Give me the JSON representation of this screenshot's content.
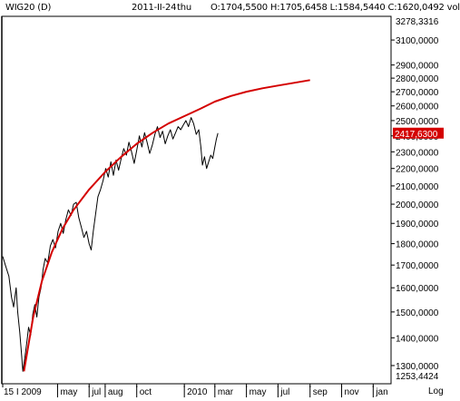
{
  "header": {
    "symbol": "WIG20 (D)",
    "date": "2011-II-24",
    "weekday": "thu",
    "ohlc": "O:1704,5500 H:1705,6458 L:1584,5440 C:1620,0492 vol"
  },
  "log_label": "Log",
  "chart_data": {
    "type": "line",
    "y_scale": "log",
    "ylim": [
      1253.4424,
      3278.3316
    ],
    "y_max_label": "3278,3316",
    "y_min_label": "1253,4424",
    "y_ticks": [
      {
        "value": 1300,
        "label": "1300,0000"
      },
      {
        "value": 1400,
        "label": "1400,0000"
      },
      {
        "value": 1500,
        "label": "1500,0000"
      },
      {
        "value": 1600,
        "label": "1600,0000"
      },
      {
        "value": 1700,
        "label": "1700,0000"
      },
      {
        "value": 1800,
        "label": "1800,0000"
      },
      {
        "value": 1900,
        "label": "1900,0000"
      },
      {
        "value": 2000,
        "label": "2000,0000"
      },
      {
        "value": 2100,
        "label": "2100,0000"
      },
      {
        "value": 2200,
        "label": "2200,0000"
      },
      {
        "value": 2300,
        "label": "2300,0000"
      },
      {
        "value": 2400,
        "label": "2400,0000"
      },
      {
        "value": 2500,
        "label": "2500,0000"
      },
      {
        "value": 2600,
        "label": "2600,0000"
      },
      {
        "value": 2700,
        "label": "2700,0000"
      },
      {
        "value": 2800,
        "label": "2800,0000"
      },
      {
        "value": 2900,
        "label": "2900,0000"
      },
      {
        "value": 3100,
        "label": "3100,0000"
      }
    ],
    "x_range": [
      "2009-01-15",
      "2011-02-01"
    ],
    "x_ticks": [
      {
        "date": "2009-01-15",
        "label": "15 I 2009"
      },
      {
        "date": "2009-05-01",
        "label": "may"
      },
      {
        "date": "2009-07-01",
        "label": "jul"
      },
      {
        "date": "2009-08-01",
        "label": "aug"
      },
      {
        "date": "2009-10-01",
        "label": "oct"
      },
      {
        "date": "2010-01-01",
        "label": "2010"
      },
      {
        "date": "2010-03-01",
        "label": "mar"
      },
      {
        "date": "2010-05-01",
        "label": "may"
      },
      {
        "date": "2010-07-01",
        "label": "jul"
      },
      {
        "date": "2010-09-01",
        "label": "sep"
      },
      {
        "date": "2010-11-01",
        "label": "nov"
      },
      {
        "date": "2011-01-01",
        "label": "jan"
      }
    ],
    "current_value": 2417.63,
    "current_label": "2417,6300",
    "series": [
      {
        "color": "#000000",
        "values": [
          {
            "x": "2009-01-15",
            "y": 1740
          },
          {
            "x": "2009-01-20",
            "y": 1700
          },
          {
            "x": "2009-01-27",
            "y": 1650
          },
          {
            "x": "2009-02-01",
            "y": 1560
          },
          {
            "x": "2009-02-05",
            "y": 1520
          },
          {
            "x": "2009-02-10",
            "y": 1600
          },
          {
            "x": "2009-02-13",
            "y": 1500
          },
          {
            "x": "2009-02-17",
            "y": 1420
          },
          {
            "x": "2009-02-20",
            "y": 1350
          },
          {
            "x": "2009-02-23",
            "y": 1280
          },
          {
            "x": "2009-02-27",
            "y": 1330
          },
          {
            "x": "2009-03-03",
            "y": 1390
          },
          {
            "x": "2009-03-06",
            "y": 1440
          },
          {
            "x": "2009-03-10",
            "y": 1410
          },
          {
            "x": "2009-03-14",
            "y": 1490
          },
          {
            "x": "2009-03-18",
            "y": 1530
          },
          {
            "x": "2009-03-22",
            "y": 1480
          },
          {
            "x": "2009-03-26",
            "y": 1560
          },
          {
            "x": "2009-03-30",
            "y": 1600
          },
          {
            "x": "2009-04-03",
            "y": 1680
          },
          {
            "x": "2009-04-07",
            "y": 1730
          },
          {
            "x": "2009-04-12",
            "y": 1710
          },
          {
            "x": "2009-04-17",
            "y": 1790
          },
          {
            "x": "2009-04-22",
            "y": 1820
          },
          {
            "x": "2009-04-27",
            "y": 1780
          },
          {
            "x": "2009-05-02",
            "y": 1860
          },
          {
            "x": "2009-05-07",
            "y": 1900
          },
          {
            "x": "2009-05-12",
            "y": 1850
          },
          {
            "x": "2009-05-17",
            "y": 1920
          },
          {
            "x": "2009-05-22",
            "y": 1970
          },
          {
            "x": "2009-05-27",
            "y": 1940
          },
          {
            "x": "2009-06-01",
            "y": 2000
          },
          {
            "x": "2009-06-06",
            "y": 2010
          },
          {
            "x": "2009-06-11",
            "y": 1930
          },
          {
            "x": "2009-06-16",
            "y": 1880
          },
          {
            "x": "2009-06-21",
            "y": 1830
          },
          {
            "x": "2009-06-26",
            "y": 1860
          },
          {
            "x": "2009-07-01",
            "y": 1800
          },
          {
            "x": "2009-07-05",
            "y": 1770
          },
          {
            "x": "2009-07-09",
            "y": 1860
          },
          {
            "x": "2009-07-14",
            "y": 1960
          },
          {
            "x": "2009-07-18",
            "y": 2040
          },
          {
            "x": "2009-07-23",
            "y": 2080
          },
          {
            "x": "2009-07-28",
            "y": 2130
          },
          {
            "x": "2009-08-02",
            "y": 2200
          },
          {
            "x": "2009-08-07",
            "y": 2150
          },
          {
            "x": "2009-08-12",
            "y": 2240
          },
          {
            "x": "2009-08-17",
            "y": 2160
          },
          {
            "x": "2009-08-22",
            "y": 2250
          },
          {
            "x": "2009-08-27",
            "y": 2190
          },
          {
            "x": "2009-09-01",
            "y": 2260
          },
          {
            "x": "2009-09-06",
            "y": 2320
          },
          {
            "x": "2009-09-11",
            "y": 2280
          },
          {
            "x": "2009-09-16",
            "y": 2360
          },
          {
            "x": "2009-09-21",
            "y": 2300
          },
          {
            "x": "2009-09-26",
            "y": 2230
          },
          {
            "x": "2009-10-01",
            "y": 2310
          },
          {
            "x": "2009-10-06",
            "y": 2400
          },
          {
            "x": "2009-10-11",
            "y": 2330
          },
          {
            "x": "2009-10-16",
            "y": 2420
          },
          {
            "x": "2009-10-21",
            "y": 2360
          },
          {
            "x": "2009-10-26",
            "y": 2290
          },
          {
            "x": "2009-10-31",
            "y": 2340
          },
          {
            "x": "2009-11-05",
            "y": 2410
          },
          {
            "x": "2009-11-10",
            "y": 2460
          },
          {
            "x": "2009-11-15",
            "y": 2390
          },
          {
            "x": "2009-11-20",
            "y": 2430
          },
          {
            "x": "2009-11-25",
            "y": 2350
          },
          {
            "x": "2009-11-30",
            "y": 2400
          },
          {
            "x": "2009-12-05",
            "y": 2440
          },
          {
            "x": "2009-12-10",
            "y": 2380
          },
          {
            "x": "2009-12-15",
            "y": 2420
          },
          {
            "x": "2009-12-20",
            "y": 2460
          },
          {
            "x": "2009-12-25",
            "y": 2440
          },
          {
            "x": "2009-12-30",
            "y": 2470
          },
          {
            "x": "2010-01-04",
            "y": 2500
          },
          {
            "x": "2010-01-09",
            "y": 2460
          },
          {
            "x": "2010-01-14",
            "y": 2520
          },
          {
            "x": "2010-01-19",
            "y": 2480
          },
          {
            "x": "2010-01-24",
            "y": 2410
          },
          {
            "x": "2010-01-29",
            "y": 2440
          },
          {
            "x": "2010-02-02",
            "y": 2330
          },
          {
            "x": "2010-02-05",
            "y": 2220
          },
          {
            "x": "2010-02-09",
            "y": 2270
          },
          {
            "x": "2010-02-13",
            "y": 2200
          },
          {
            "x": "2010-02-17",
            "y": 2240
          },
          {
            "x": "2010-02-21",
            "y": 2280
          },
          {
            "x": "2010-02-25",
            "y": 2260
          },
          {
            "x": "2010-03-01",
            "y": 2330
          },
          {
            "x": "2010-03-04",
            "y": 2380
          },
          {
            "x": "2010-03-07",
            "y": 2417.63
          }
        ]
      },
      {
        "color": "#d40000",
        "values": [
          {
            "x": "2009-02-25",
            "y": 1280
          },
          {
            "x": "2009-03-15",
            "y": 1480
          },
          {
            "x": "2009-04-01",
            "y": 1630
          },
          {
            "x": "2009-04-20",
            "y": 1760
          },
          {
            "x": "2009-05-10",
            "y": 1870
          },
          {
            "x": "2009-06-01",
            "y": 1970
          },
          {
            "x": "2009-07-01",
            "y": 2080
          },
          {
            "x": "2009-08-01",
            "y": 2180
          },
          {
            "x": "2009-09-01",
            "y": 2270
          },
          {
            "x": "2009-10-01",
            "y": 2350
          },
          {
            "x": "2009-11-01",
            "y": 2420
          },
          {
            "x": "2009-12-01",
            "y": 2480
          },
          {
            "x": "2010-01-01",
            "y": 2530
          },
          {
            "x": "2010-02-01",
            "y": 2580
          },
          {
            "x": "2010-03-01",
            "y": 2630
          },
          {
            "x": "2010-04-01",
            "y": 2670
          },
          {
            "x": "2010-05-01",
            "y": 2700
          },
          {
            "x": "2010-06-01",
            "y": 2725
          },
          {
            "x": "2010-07-01",
            "y": 2745
          },
          {
            "x": "2010-08-01",
            "y": 2765
          },
          {
            "x": "2010-09-01",
            "y": 2785
          }
        ]
      }
    ]
  }
}
